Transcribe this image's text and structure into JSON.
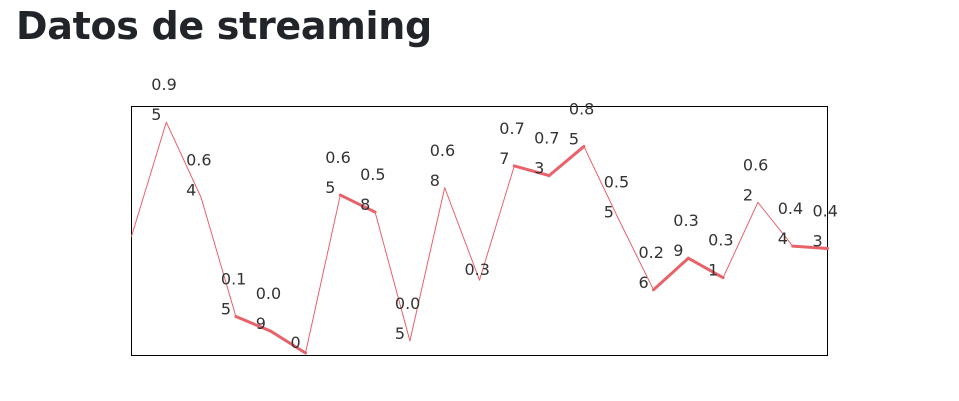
{
  "page": {
    "title": "Datos de streaming"
  },
  "chart_data": {
    "type": "line",
    "title": "",
    "xlabel": "",
    "ylabel": "",
    "ylim": [
      0,
      1
    ],
    "grid": false,
    "line_color": "#e8626a",
    "values": [
      0.48,
      0.95,
      0.64,
      0.15,
      0.09,
      0.0,
      0.65,
      0.58,
      0.05,
      0.68,
      0.3,
      0.77,
      0.73,
      0.85,
      0.55,
      0.26,
      0.39,
      0.31,
      0.62,
      0.44,
      0.43
    ],
    "labels": [
      "",
      "0.95",
      "0.64",
      "0.15",
      "0.09",
      "0",
      "0.65",
      "0.58",
      "0.05",
      "0.68",
      "0.3",
      "0.77",
      "0.73",
      "0.85",
      "0.55",
      "0.26",
      "0.39",
      "0.31",
      "0.62",
      "0.44",
      "0.43"
    ],
    "stroke_widths": [
      1,
      1,
      1,
      3,
      3,
      1,
      3,
      1,
      1,
      1,
      1,
      3,
      3,
      1,
      1,
      3,
      3,
      1,
      1,
      3
    ]
  }
}
